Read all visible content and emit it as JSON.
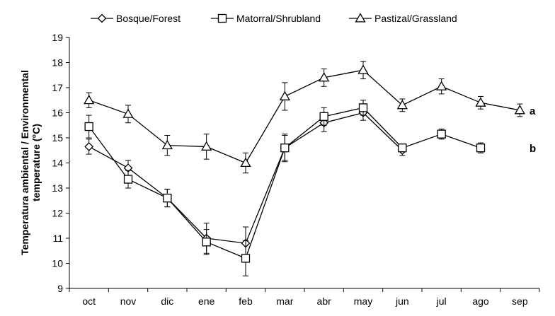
{
  "chart_data": {
    "type": "line",
    "categories": [
      "oct",
      "nov",
      "dic",
      "ene",
      "feb",
      "mar",
      "abr",
      "may",
      "jun",
      "jul",
      "ago",
      "sep"
    ],
    "ylabel": [
      "Temperatura ambiental / Environmental",
      "temperature (°C)"
    ],
    "ylim": [
      9,
      19
    ],
    "yticks": [
      9,
      10,
      11,
      12,
      13,
      14,
      15,
      16,
      17,
      18,
      19
    ],
    "grid": false,
    "legend_position": "top",
    "series": [
      {
        "name": "Bosque/Forest",
        "marker": "diamond",
        "values": [
          14.65,
          13.8,
          12.6,
          11.0,
          10.8,
          14.6,
          15.6,
          16.0,
          14.5,
          null,
          null,
          null
        ],
        "errors": [
          0.3,
          0.3,
          0.35,
          0.6,
          0.65,
          0.5,
          0.35,
          0.3,
          0.2,
          null,
          null,
          null
        ]
      },
      {
        "name": "Matorral/Shrubland",
        "marker": "square",
        "values": [
          15.45,
          13.35,
          12.6,
          10.85,
          10.2,
          14.6,
          15.85,
          16.2,
          14.6,
          15.15,
          14.6,
          null
        ],
        "errors": [
          0.45,
          0.35,
          0.35,
          0.5,
          0.7,
          0.55,
          0.35,
          0.3,
          0.15,
          0.2,
          0.2,
          null
        ]
      },
      {
        "name": "Pastizal/Grassland",
        "marker": "triangle",
        "values": [
          16.5,
          15.95,
          14.7,
          14.65,
          14.0,
          16.65,
          17.4,
          17.7,
          16.3,
          17.05,
          16.4,
          16.1
        ],
        "errors": [
          0.3,
          0.35,
          0.4,
          0.5,
          0.4,
          0.55,
          0.35,
          0.35,
          0.25,
          0.3,
          0.25,
          0.25
        ]
      }
    ],
    "annotations": [
      {
        "text": "a",
        "series": "Pastizal/Grassland"
      },
      {
        "text": "b",
        "series": "Matorral/Shrubland"
      }
    ]
  }
}
